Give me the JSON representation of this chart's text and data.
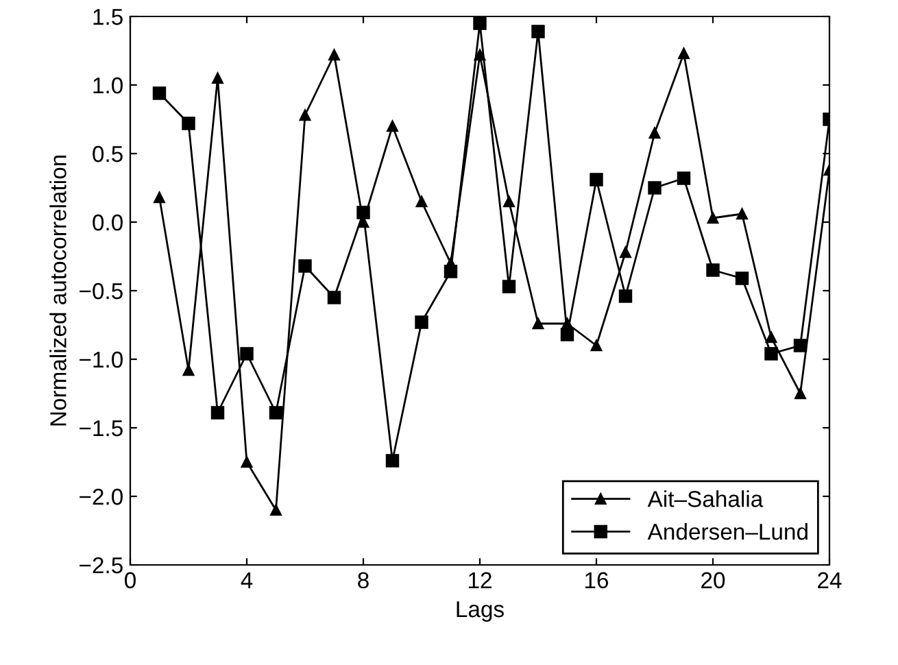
{
  "chart_data": {
    "type": "line",
    "xlabel": "Lags",
    "ylabel": "Normalized autocorrelation",
    "x": [
      1,
      2,
      3,
      4,
      5,
      6,
      7,
      8,
      9,
      10,
      11,
      12,
      13,
      14,
      15,
      16,
      17,
      18,
      19,
      20,
      21,
      22,
      23,
      24
    ],
    "series": [
      {
        "name": "Ait–Sahalia",
        "color": "#000000",
        "marker": "triangle",
        "values": [
          0.18,
          -1.08,
          1.05,
          -1.75,
          -2.1,
          0.78,
          1.22,
          0.0,
          0.7,
          0.15,
          -0.3,
          1.22,
          0.15,
          -0.74,
          -0.74,
          -0.9,
          -0.22,
          0.65,
          1.23,
          0.03,
          0.06,
          -0.84,
          -1.25,
          0.38
        ]
      },
      {
        "name": "Andersen–Lund",
        "color": "#000000",
        "marker": "square",
        "values": [
          0.94,
          0.72,
          -1.39,
          -0.96,
          -1.39,
          -0.32,
          -0.55,
          0.07,
          -1.74,
          -0.73,
          -0.36,
          1.45,
          -0.47,
          1.39,
          -0.82,
          0.31,
          -0.54,
          0.25,
          0.32,
          -0.35,
          -0.41,
          -0.96,
          -0.9,
          0.75
        ]
      }
    ],
    "xlim": [
      0,
      24
    ],
    "xticks": [
      0,
      4,
      8,
      12,
      16,
      20,
      24
    ],
    "ylim": [
      -2.5,
      1.5
    ],
    "yticks": [
      {
        "value": -2.5,
        "label": "−2.5"
      },
      {
        "value": -2.0,
        "label": "−2.0"
      },
      {
        "value": -1.5,
        "label": "−1.5"
      },
      {
        "value": -1.0,
        "label": "−1.0"
      },
      {
        "value": -0.5,
        "label": "−0.5"
      },
      {
        "value": 0,
        "label": "0.0"
      },
      {
        "value": 0.5,
        "label": "0.5"
      },
      {
        "value": 1.0,
        "label": "1.0"
      },
      {
        "value": 1.5,
        "label": "1.5"
      }
    ],
    "grid": false,
    "legend": "bottom right",
    "line_style": "solid"
  }
}
